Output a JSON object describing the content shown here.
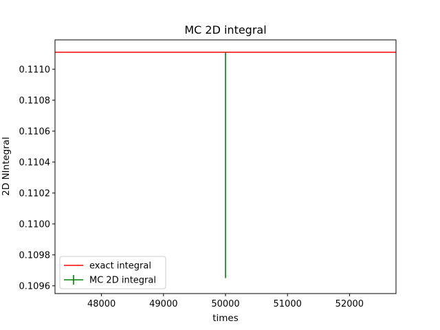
{
  "chart_data": {
    "type": "line",
    "title": "MC 2D integral",
    "xlabel": "times",
    "ylabel": "2D NIntegral",
    "xlim": [
      47250,
      52750
    ],
    "ylim": [
      0.10955,
      0.11119
    ],
    "x_ticks": [
      48000,
      49000,
      50000,
      51000,
      52000
    ],
    "x_tick_labels": [
      "48000",
      "49000",
      "50000",
      "51000",
      "52000"
    ],
    "y_ticks": [
      0.1096,
      0.1098,
      0.11,
      0.1102,
      0.1104,
      0.1106,
      0.1108,
      0.111
    ],
    "y_tick_labels": [
      "0.1096",
      "0.1098",
      "0.1100",
      "0.1102",
      "0.1104",
      "0.1106",
      "0.1108",
      "0.1110"
    ],
    "grid": false,
    "legend_position": "lower-left",
    "series": [
      {
        "name": "exact integral",
        "kind": "hline",
        "value": 0.11111,
        "color": "#ff0000"
      },
      {
        "name": "MC 2D integral",
        "kind": "errorbar",
        "x": [
          50000
        ],
        "y": [
          0.11038
        ],
        "yerr": [
          0.00073
        ],
        "color": "#008000"
      }
    ]
  }
}
